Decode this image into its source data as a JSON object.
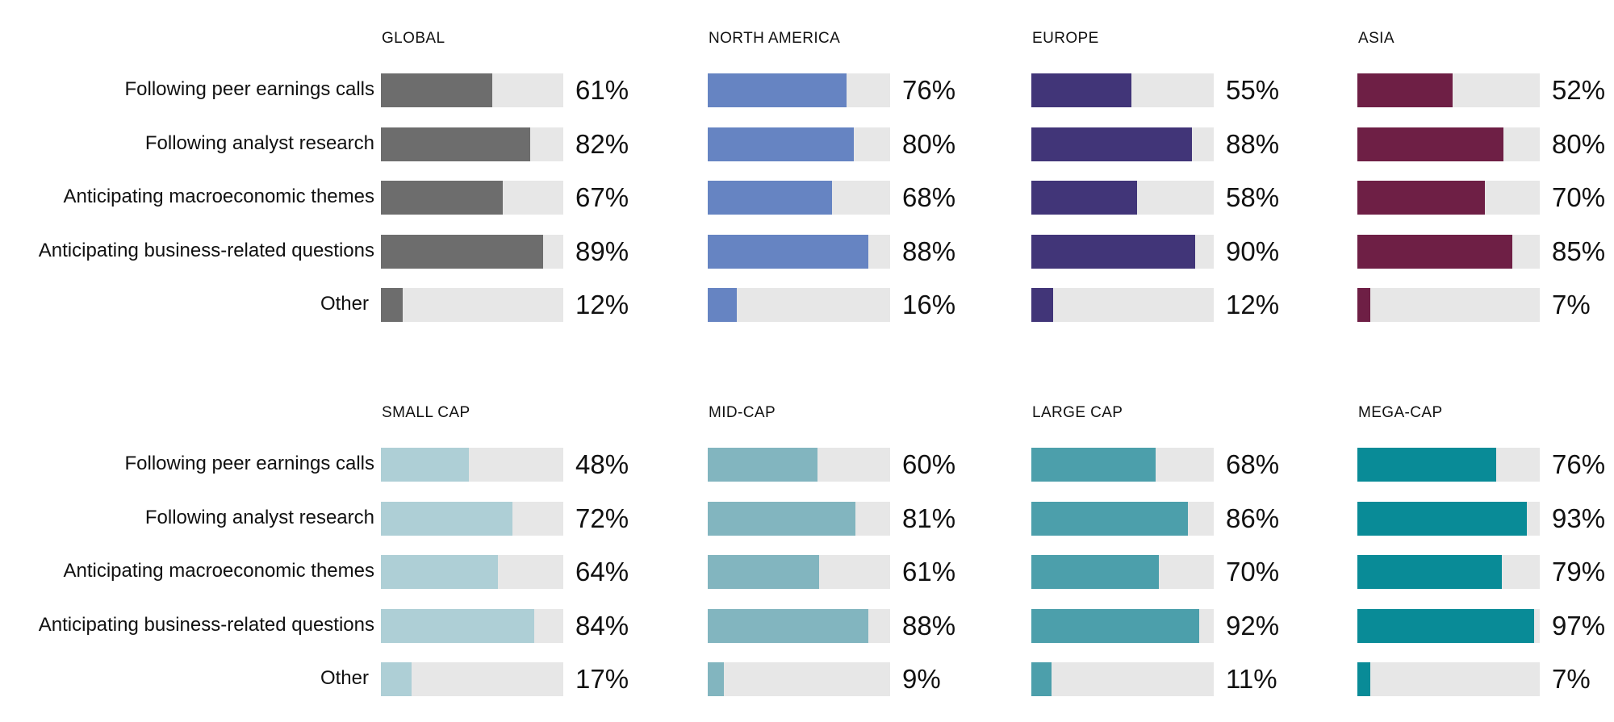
{
  "chart_data": [
    {
      "type": "bar",
      "orientation": "horizontal",
      "title": "GLOBAL",
      "categories": [
        "Following peer earnings calls",
        "Following analyst research",
        "Anticipating macroeconomic themes",
        "Anticipating business-related questions",
        "Other"
      ],
      "values": [
        61,
        82,
        67,
        89,
        12
      ],
      "value_labels": [
        "61%",
        "82%",
        "67%",
        "89%",
        "12%"
      ],
      "xlim": [
        0,
        100
      ],
      "color": "#6d6d6d",
      "track_color": "#e7e7e7"
    },
    {
      "type": "bar",
      "orientation": "horizontal",
      "title": "NORTH AMERICA",
      "categories": [
        "Following peer earnings calls",
        "Following analyst research",
        "Anticipating macroeconomic themes",
        "Anticipating business-related questions",
        "Other"
      ],
      "values": [
        76,
        80,
        68,
        88,
        16
      ],
      "value_labels": [
        "76%",
        "80%",
        "68%",
        "88%",
        "16%"
      ],
      "xlim": [
        0,
        100
      ],
      "color": "#6684c2",
      "track_color": "#e7e7e7"
    },
    {
      "type": "bar",
      "orientation": "horizontal",
      "title": "EUROPE",
      "categories": [
        "Following peer earnings calls",
        "Following analyst research",
        "Anticipating macroeconomic themes",
        "Anticipating business-related questions",
        "Other"
      ],
      "values": [
        55,
        88,
        58,
        90,
        12
      ],
      "value_labels": [
        "55%",
        "88%",
        "58%",
        "90%",
        "12%"
      ],
      "xlim": [
        0,
        100
      ],
      "color": "#413578",
      "track_color": "#e7e7e7"
    },
    {
      "type": "bar",
      "orientation": "horizontal",
      "title": "ASIA",
      "categories": [
        "Following peer earnings calls",
        "Following analyst research",
        "Anticipating macroeconomic themes",
        "Anticipating business-related questions",
        "Other"
      ],
      "values": [
        52,
        80,
        70,
        85,
        7
      ],
      "value_labels": [
        "52%",
        "80%",
        "70%",
        "85%",
        "7%"
      ],
      "xlim": [
        0,
        100
      ],
      "color": "#6e1f45",
      "track_color": "#e7e7e7"
    },
    {
      "type": "bar",
      "orientation": "horizontal",
      "title": "SMALL CAP",
      "categories": [
        "Following peer earnings calls",
        "Following analyst research",
        "Anticipating macroeconomic themes",
        "Anticipating business-related questions",
        "Other"
      ],
      "values": [
        48,
        72,
        64,
        84,
        17
      ],
      "value_labels": [
        "48%",
        "72%",
        "64%",
        "84%",
        "17%"
      ],
      "xlim": [
        0,
        100
      ],
      "color": "#aecfd6",
      "track_color": "#e7e7e7"
    },
    {
      "type": "bar",
      "orientation": "horizontal",
      "title": "MID-CAP",
      "categories": [
        "Following peer earnings calls",
        "Following analyst research",
        "Anticipating macroeconomic themes",
        "Anticipating business-related questions",
        "Other"
      ],
      "values": [
        60,
        81,
        61,
        88,
        9
      ],
      "value_labels": [
        "60%",
        "81%",
        "61%",
        "88%",
        "9%"
      ],
      "xlim": [
        0,
        100
      ],
      "color": "#82b5bf",
      "track_color": "#e7e7e7"
    },
    {
      "type": "bar",
      "orientation": "horizontal",
      "title": "LARGE CAP",
      "categories": [
        "Following peer earnings calls",
        "Following analyst research",
        "Anticipating macroeconomic themes",
        "Anticipating business-related questions",
        "Other"
      ],
      "values": [
        68,
        86,
        70,
        92,
        11
      ],
      "value_labels": [
        "68%",
        "86%",
        "70%",
        "92%",
        "11%"
      ],
      "xlim": [
        0,
        100
      ],
      "color": "#4c9fab",
      "track_color": "#e7e7e7"
    },
    {
      "type": "bar",
      "orientation": "horizontal",
      "title": "MEGA-CAP",
      "categories": [
        "Following peer earnings calls",
        "Following analyst research",
        "Anticipating macroeconomic themes",
        "Anticipating business-related questions",
        "Other"
      ],
      "values": [
        76,
        93,
        79,
        97,
        7
      ],
      "value_labels": [
        "76%",
        "93%",
        "79%",
        "97%",
        "7%"
      ],
      "xlim": [
        0,
        100
      ],
      "color": "#098b97",
      "track_color": "#e7e7e7"
    }
  ]
}
